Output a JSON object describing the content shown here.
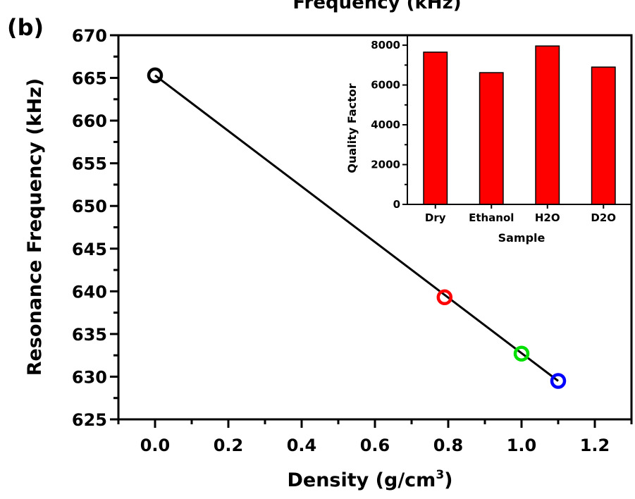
{
  "panel_label": "(b)",
  "cropped_header": "Frequency (kHz)",
  "chart_data": [
    {
      "type": "scatter",
      "xlabel": "Density (g/cm",
      "xlabel_superscript": "3",
      "xlabel_suffix": ")",
      "ylabel": "Resonance Frequency (kHz)",
      "xlim": [
        -0.1,
        1.3
      ],
      "ylim": [
        625,
        670
      ],
      "xticks": [
        "0.0",
        "0.2",
        "0.4",
        "0.6",
        "0.8",
        "1.0",
        "1.2"
      ],
      "yticks": [
        "625",
        "630",
        "635",
        "640",
        "645",
        "650",
        "655",
        "660",
        "665",
        "670"
      ],
      "fit_line": {
        "x": [
          0.0,
          1.1
        ],
        "y": [
          665.3,
          629.5
        ],
        "color": "#000000"
      },
      "points": [
        {
          "x": 0.0,
          "y": 665.3,
          "color": "#000000"
        },
        {
          "x": 0.79,
          "y": 639.3,
          "color": "#ff0000"
        },
        {
          "x": 1.0,
          "y": 632.7,
          "color": "#00e000"
        },
        {
          "x": 1.1,
          "y": 629.5,
          "color": "#0000ff"
        }
      ],
      "grid": false
    },
    {
      "type": "bar",
      "role": "inset",
      "categories": [
        "Dry",
        "Ethanol",
        "H2O",
        "D2O"
      ],
      "values": [
        7650,
        6620,
        7960,
        6900
      ],
      "xlabel": "Sample",
      "ylabel": "Quality Factor",
      "ylim": [
        0,
        8500
      ],
      "yticks": [
        "0",
        "2000",
        "4000",
        "6000",
        "8000"
      ],
      "bar_color": "#ff0000",
      "grid": false
    }
  ]
}
